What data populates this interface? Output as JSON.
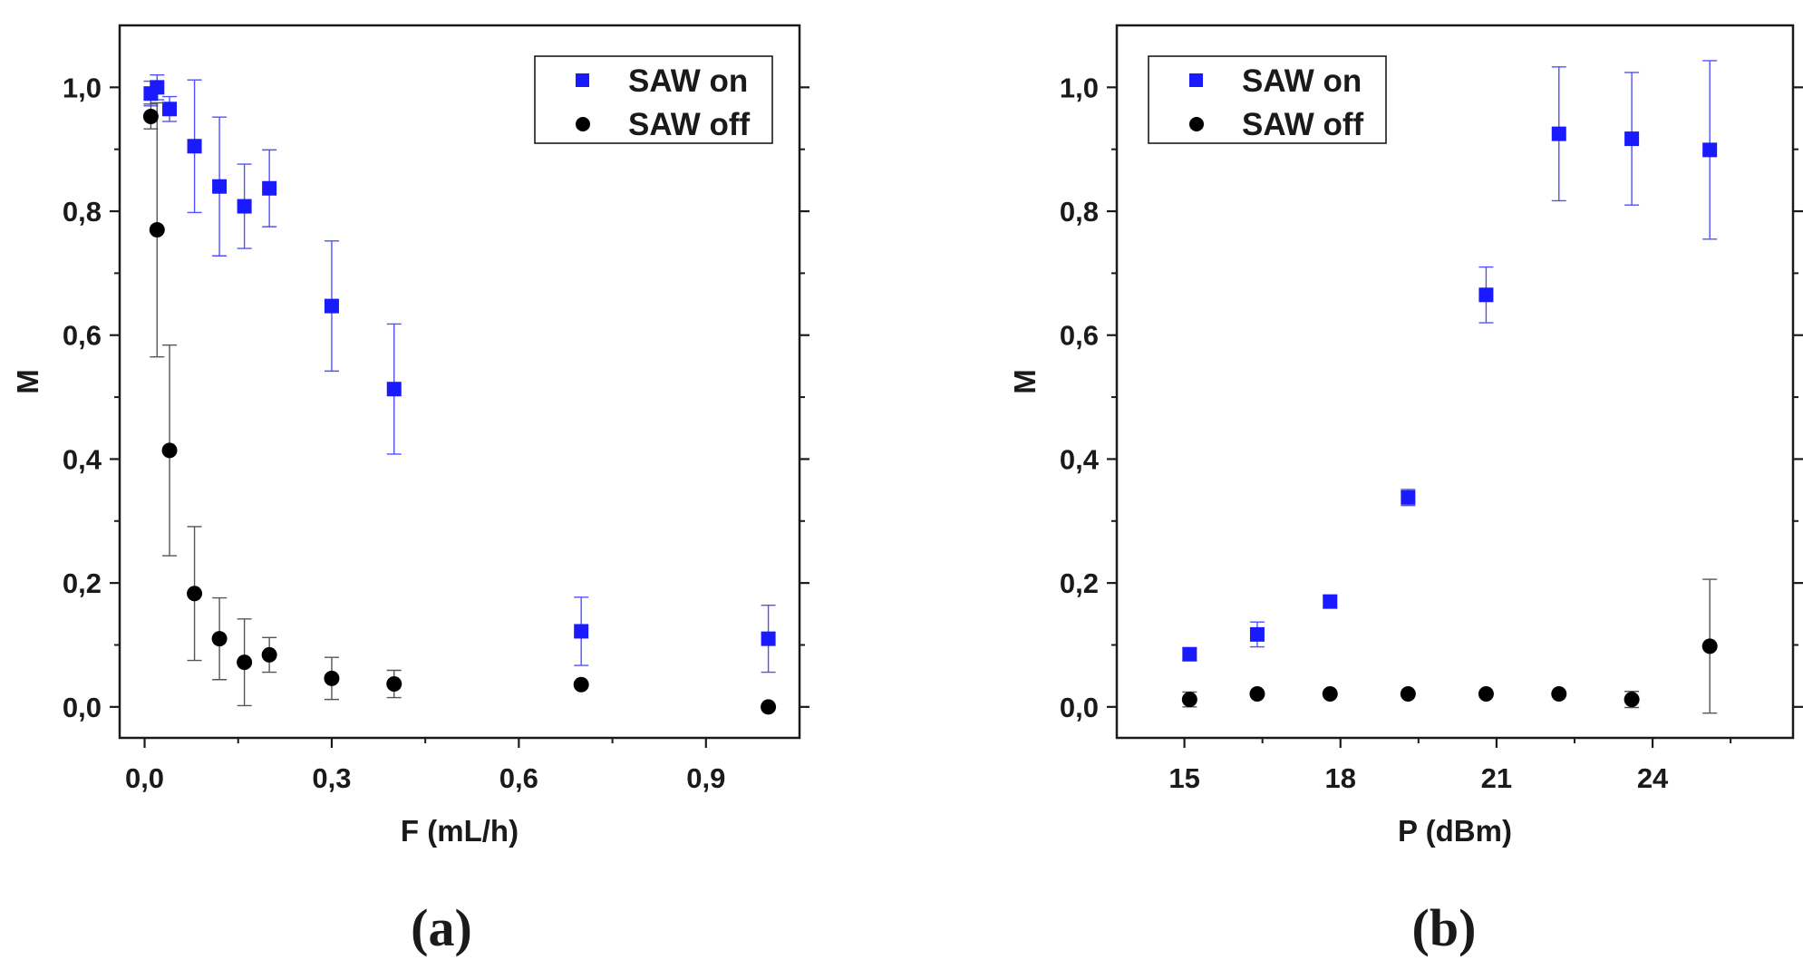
{
  "colors": {
    "saw_on": "#1a1aff",
    "saw_off": "#000000",
    "err_on": "#5050ff",
    "err_off": "#555555"
  },
  "chart_data": [
    {
      "type": "scatter",
      "panel_label": "(a)",
      "xlabel": "F (mL/h)",
      "ylabel": "M",
      "xlim": [
        -0.04,
        1.05
      ],
      "ylim": [
        -0.05,
        1.1
      ],
      "xticks": [
        0.0,
        0.3,
        0.6,
        0.9
      ],
      "xtick_labels": [
        "0,0",
        "0,3",
        "0,6",
        "0,9"
      ],
      "yticks": [
        0.0,
        0.2,
        0.4,
        0.6,
        0.8,
        1.0
      ],
      "ytick_labels": [
        "0,0",
        "0,2",
        "0,4",
        "0,6",
        "0,8",
        "1,0"
      ],
      "legend_position": "top-right",
      "series": [
        {
          "name": "SAW on",
          "marker": "square",
          "color": "#1a1aff",
          "x": [
            0.01,
            0.02,
            0.04,
            0.08,
            0.12,
            0.16,
            0.2,
            0.3,
            0.4,
            0.7,
            1.0
          ],
          "y": [
            0.99,
            1.0,
            0.965,
            0.905,
            0.84,
            0.808,
            0.837,
            0.647,
            0.513,
            0.122,
            0.11
          ],
          "err": [
            0.02,
            0.02,
            0.02,
            0.107,
            0.112,
            0.068,
            0.062,
            0.105,
            0.105,
            0.055,
            0.054
          ]
        },
        {
          "name": "SAW off",
          "marker": "circle",
          "color": "#000000",
          "x": [
            0.01,
            0.02,
            0.04,
            0.08,
            0.12,
            0.16,
            0.2,
            0.3,
            0.4,
            0.7,
            1.0
          ],
          "y": [
            0.953,
            0.77,
            0.414,
            0.183,
            0.11,
            0.072,
            0.084,
            0.046,
            0.037,
            0.036,
            0.0
          ],
          "err": [
            0.02,
            0.205,
            0.17,
            0.108,
            0.066,
            0.07,
            0.028,
            0.034,
            0.022,
            0.0,
            0.0
          ]
        }
      ]
    },
    {
      "type": "scatter",
      "panel_label": "(b)",
      "xlabel": "P (dBm)",
      "ylabel": "M",
      "xlim": [
        13.7,
        26.7
      ],
      "ylim": [
        -0.05,
        1.1
      ],
      "xticks": [
        15,
        18,
        21,
        24
      ],
      "xtick_labels": [
        "15",
        "18",
        "21",
        "24"
      ],
      "yticks": [
        0.0,
        0.2,
        0.4,
        0.6,
        0.8,
        1.0
      ],
      "ytick_labels": [
        "0,0",
        "0,2",
        "0,4",
        "0,6",
        "0,8",
        "1,0"
      ],
      "legend_position": "top-left",
      "series": [
        {
          "name": "SAW on",
          "marker": "square",
          "color": "#1a1aff",
          "x": [
            15.1,
            16.4,
            17.8,
            19.3,
            20.8,
            22.2,
            23.6,
            25.1
          ],
          "y": [
            0.085,
            0.117,
            0.17,
            0.338,
            0.665,
            0.925,
            0.917,
            0.899
          ],
          "err": [
            0.01,
            0.02,
            0.01,
            0.013,
            0.045,
            0.108,
            0.107,
            0.144
          ]
        },
        {
          "name": "SAW off",
          "marker": "circle",
          "color": "#000000",
          "x": [
            15.1,
            16.4,
            17.8,
            19.3,
            20.8,
            22.2,
            23.6,
            25.1
          ],
          "y": [
            0.012,
            0.021,
            0.021,
            0.021,
            0.021,
            0.021,
            0.012,
            0.098
          ],
          "err": [
            0.012,
            0.0,
            0.0,
            0.0,
            0.0,
            0.0,
            0.013,
            0.108
          ]
        }
      ]
    }
  ]
}
